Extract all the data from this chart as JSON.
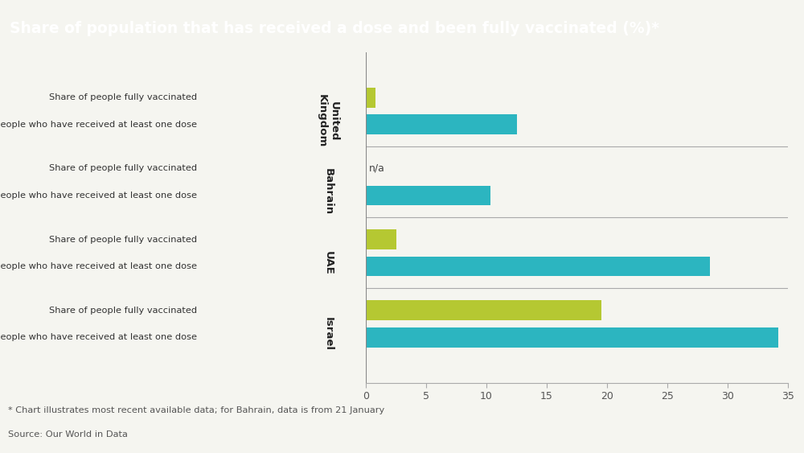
{
  "title": "Share of population that has received a dose and been fully vaccinated (%)*",
  "title_bg_color": "#1d3d4f",
  "title_text_color": "#ffffff",
  "bg_color": "#f5f5f0",
  "countries": [
    "United\nKingdom",
    "Bahrain",
    "UAE",
    "Israel"
  ],
  "countries_display": [
    "United\nKingdom",
    "Bahrain",
    "UAE",
    "Israel"
  ],
  "fully_vaccinated": [
    0.8,
    null,
    2.5,
    19.5
  ],
  "at_least_one_dose": [
    12.5,
    10.3,
    28.5,
    34.2
  ],
  "color_fully": "#b5c832",
  "color_dose": "#2cb5c0",
  "footnote": "* Chart illustrates most recent available data; for Bahrain, data is from 21 January",
  "source": "Source: Our World in Data",
  "xlim": [
    0,
    35
  ],
  "xticks": [
    0,
    5,
    10,
    15,
    20,
    25,
    30,
    35
  ],
  "bar_label_fully": "Share of people fully vaccinated",
  "bar_label_dose": "Share of people who have received at least one dose",
  "na_label": "n/a"
}
